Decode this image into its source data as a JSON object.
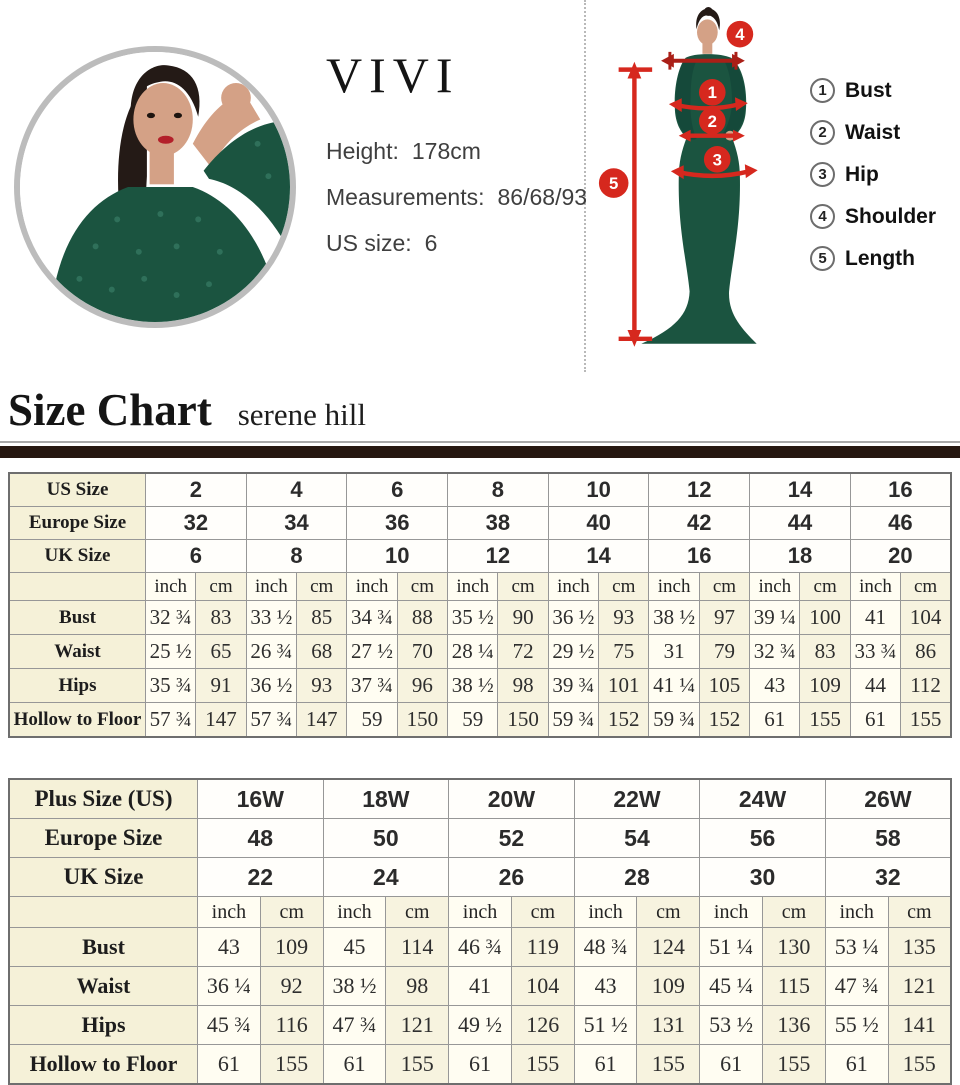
{
  "colors": {
    "accent_red": "#d6281e",
    "dress_green": "#1b5440",
    "label_cell_bg": "#f5f1d8",
    "divider_bar": "#261710"
  },
  "model_card": {
    "brand": "VIVI",
    "height_label": "Height:",
    "height_value": "178cm",
    "measurements_label": "Measurements:",
    "measurements_value": "86/68/93",
    "us_size_label": "US size:",
    "us_size_value": "6"
  },
  "figure": {
    "markers": [
      "1",
      "2",
      "3",
      "4",
      "5"
    ]
  },
  "measure_legend": {
    "items": [
      {
        "num": "1",
        "label": "Bust"
      },
      {
        "num": "2",
        "label": "Waist"
      },
      {
        "num": "3",
        "label": "Hip"
      },
      {
        "num": "4",
        "label": "Shoulder"
      },
      {
        "num": "5",
        "label": "Length"
      }
    ]
  },
  "heading": {
    "title": "Size Chart",
    "subtitle": "serene hill"
  },
  "standard_table": {
    "units": [
      "inch",
      "cm"
    ],
    "size_rows": [
      {
        "label": "US Size",
        "values": [
          "2",
          "4",
          "6",
          "8",
          "10",
          "12",
          "14",
          "16"
        ]
      },
      {
        "label": "Europe Size",
        "values": [
          "32",
          "34",
          "36",
          "38",
          "40",
          "42",
          "44",
          "46"
        ]
      },
      {
        "label": "UK Size",
        "values": [
          "6",
          "8",
          "10",
          "12",
          "14",
          "16",
          "18",
          "20"
        ]
      }
    ],
    "rows": [
      {
        "label": "Bust",
        "pairs": [
          [
            "32 ¾",
            "83"
          ],
          [
            "33 ½",
            "85"
          ],
          [
            "34 ¾",
            "88"
          ],
          [
            "35 ½",
            "90"
          ],
          [
            "36 ½",
            "93"
          ],
          [
            "38 ½",
            "97"
          ],
          [
            "39 ¼",
            "100"
          ],
          [
            "41",
            "104"
          ]
        ]
      },
      {
        "label": "Waist",
        "pairs": [
          [
            "25 ½",
            "65"
          ],
          [
            "26 ¾",
            "68"
          ],
          [
            "27 ½",
            "70"
          ],
          [
            "28 ¼",
            "72"
          ],
          [
            "29 ½",
            "75"
          ],
          [
            "31",
            "79"
          ],
          [
            "32 ¾",
            "83"
          ],
          [
            "33 ¾",
            "86"
          ]
        ]
      },
      {
        "label": "Hips",
        "pairs": [
          [
            "35 ¾",
            "91"
          ],
          [
            "36 ½",
            "93"
          ],
          [
            "37 ¾",
            "96"
          ],
          [
            "38 ½",
            "98"
          ],
          [
            "39 ¾",
            "101"
          ],
          [
            "41 ¼",
            "105"
          ],
          [
            "43",
            "109"
          ],
          [
            "44",
            "112"
          ]
        ]
      },
      {
        "label": "Hollow to Floor",
        "pairs": [
          [
            "57 ¾",
            "147"
          ],
          [
            "57 ¾",
            "147"
          ],
          [
            "59",
            "150"
          ],
          [
            "59",
            "150"
          ],
          [
            "59 ¾",
            "152"
          ],
          [
            "59 ¾",
            "152"
          ],
          [
            "61",
            "155"
          ],
          [
            "61",
            "155"
          ]
        ]
      }
    ]
  },
  "plus_table": {
    "units": [
      "inch",
      "cm"
    ],
    "size_rows": [
      {
        "label": "Plus Size (US)",
        "values": [
          "16W",
          "18W",
          "20W",
          "22W",
          "24W",
          "26W"
        ]
      },
      {
        "label": "Europe Size",
        "values": [
          "48",
          "50",
          "52",
          "54",
          "56",
          "58"
        ]
      },
      {
        "label": "UK Size",
        "values": [
          "22",
          "24",
          "26",
          "28",
          "30",
          "32"
        ]
      }
    ],
    "rows": [
      {
        "label": "Bust",
        "pairs": [
          [
            "43",
            "109"
          ],
          [
            "45",
            "114"
          ],
          [
            "46 ¾",
            "119"
          ],
          [
            "48 ¾",
            "124"
          ],
          [
            "51 ¼",
            "130"
          ],
          [
            "53 ¼",
            "135"
          ]
        ]
      },
      {
        "label": "Waist",
        "pairs": [
          [
            "36 ¼",
            "92"
          ],
          [
            "38 ½",
            "98"
          ],
          [
            "41",
            "104"
          ],
          [
            "43",
            "109"
          ],
          [
            "45 ¼",
            "115"
          ],
          [
            "47 ¾",
            "121"
          ]
        ]
      },
      {
        "label": "Hips",
        "pairs": [
          [
            "45 ¾",
            "116"
          ],
          [
            "47 ¾",
            "121"
          ],
          [
            "49 ½",
            "126"
          ],
          [
            "51 ½",
            "131"
          ],
          [
            "53 ½",
            "136"
          ],
          [
            "55 ½",
            "141"
          ]
        ]
      },
      {
        "label": "Hollow to Floor",
        "pairs": [
          [
            "61",
            "155"
          ],
          [
            "61",
            "155"
          ],
          [
            "61",
            "155"
          ],
          [
            "61",
            "155"
          ],
          [
            "61",
            "155"
          ],
          [
            "61",
            "155"
          ]
        ]
      }
    ]
  }
}
